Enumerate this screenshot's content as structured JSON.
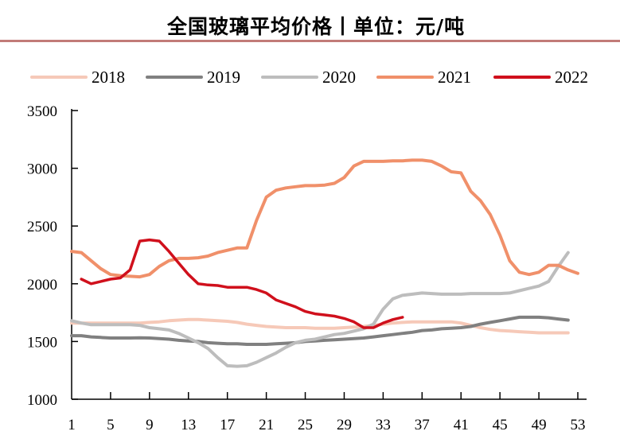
{
  "chart_data": {
    "type": "line",
    "title": "全国玻璃平均价格丨单位：元/吨",
    "xlabel": "",
    "ylabel": "",
    "ylim": [
      1000,
      3500
    ],
    "xlim": [
      1,
      53
    ],
    "yticks": [
      "1000",
      "1500",
      "2000",
      "2500",
      "3000",
      "3500"
    ],
    "xticks": [
      "1",
      "5",
      "9",
      "13",
      "17",
      "21",
      "25",
      "29",
      "33",
      "37",
      "41",
      "45",
      "49",
      "53"
    ],
    "grid": false,
    "legend": "top",
    "series": [
      {
        "name": "2018",
        "color": "#f6c9b8",
        "start_week": 1,
        "values": [
          1660,
          1660,
          1660,
          1660,
          1660,
          1660,
          1660,
          1660,
          1665,
          1670,
          1680,
          1685,
          1690,
          1690,
          1685,
          1680,
          1675,
          1665,
          1650,
          1640,
          1630,
          1625,
          1620,
          1620,
          1620,
          1615,
          1615,
          1615,
          1620,
          1625,
          1630,
          1640,
          1650,
          1660,
          1665,
          1670,
          1670,
          1670,
          1670,
          1670,
          1660,
          1640,
          1620,
          1605,
          1595,
          1590,
          1585,
          1580,
          1575,
          1575,
          1575,
          1575
        ]
      },
      {
        "name": "2019",
        "color": "#808080",
        "start_week": 1,
        "values": [
          1550,
          1550,
          1540,
          1535,
          1530,
          1530,
          1530,
          1532,
          1530,
          1525,
          1520,
          1510,
          1505,
          1500,
          1490,
          1485,
          1480,
          1480,
          1475,
          1475,
          1475,
          1480,
          1485,
          1490,
          1500,
          1505,
          1510,
          1515,
          1520,
          1525,
          1530,
          1540,
          1550,
          1560,
          1570,
          1580,
          1595,
          1600,
          1610,
          1615,
          1620,
          1630,
          1650,
          1665,
          1680,
          1695,
          1710,
          1710,
          1710,
          1705,
          1695,
          1685
        ]
      },
      {
        "name": "2020",
        "color": "#bdbdbd",
        "start_week": 1,
        "values": [
          1680,
          1660,
          1645,
          1645,
          1645,
          1645,
          1645,
          1640,
          1620,
          1610,
          1600,
          1570,
          1530,
          1490,
          1440,
          1360,
          1290,
          1285,
          1290,
          1320,
          1360,
          1400,
          1450,
          1490,
          1510,
          1520,
          1540,
          1560,
          1570,
          1590,
          1610,
          1650,
          1780,
          1870,
          1900,
          1910,
          1920,
          1915,
          1910,
          1910,
          1910,
          1915,
          1915,
          1915,
          1915,
          1920,
          1940,
          1960,
          1980,
          2020,
          2150,
          2270
        ]
      },
      {
        "name": "2021",
        "color": "#f0906a",
        "start_week": 1,
        "values": [
          2280,
          2270,
          2200,
          2130,
          2080,
          2070,
          2065,
          2060,
          2080,
          2150,
          2200,
          2220,
          2220,
          2225,
          2240,
          2270,
          2290,
          2310,
          2310,
          2550,
          2750,
          2810,
          2830,
          2840,
          2850,
          2850,
          2855,
          2870,
          2920,
          3020,
          3060,
          3060,
          3060,
          3065,
          3065,
          3070,
          3070,
          3060,
          3020,
          2970,
          2960,
          2800,
          2720,
          2600,
          2420,
          2200,
          2100,
          2080,
          2100,
          2160,
          2160,
          2120,
          2090
        ]
      },
      {
        "name": "2022",
        "color": "#d0101c",
        "start_week": 2,
        "values": [
          2040,
          2000,
          2020,
          2040,
          2050,
          2120,
          2370,
          2380,
          2370,
          2280,
          2180,
          2080,
          2000,
          1990,
          1985,
          1970,
          1970,
          1970,
          1950,
          1920,
          1860,
          1830,
          1800,
          1760,
          1740,
          1730,
          1720,
          1700,
          1670,
          1620,
          1620,
          1660,
          1690,
          1710
        ]
      }
    ]
  }
}
